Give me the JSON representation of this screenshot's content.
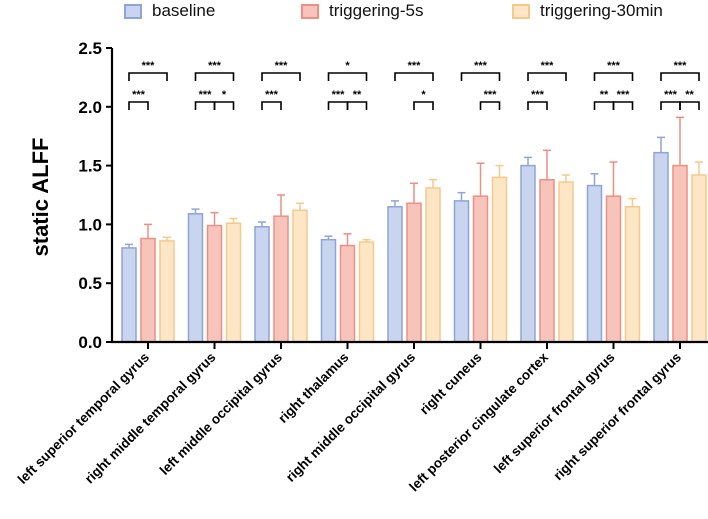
{
  "chart_data": {
    "type": "bar",
    "ylabel": "static ALFF",
    "xlabel": "",
    "ylim": [
      0,
      2.5
    ],
    "yticks": [
      0.0,
      0.5,
      1.0,
      1.5,
      2.0,
      2.5
    ],
    "ytick_labels": [
      "0.0",
      "0.5",
      "1.0",
      "1.5",
      "2.0",
      "2.5"
    ],
    "legend_position": "top",
    "categories": [
      "left superior temporal gyrus",
      "right middle temporal gyrus",
      "left middle occipital gyrus",
      "right thalamus",
      "right middle occipital gyrus",
      "right cuneus",
      "left posterior cingulate cortex",
      "left superior frontal gyrus",
      "right superior frontal gyrus"
    ],
    "series": [
      {
        "name": "baseline",
        "fill": "#c9d4ee",
        "stroke": "#8fa4d8",
        "values": [
          0.8,
          1.09,
          0.98,
          0.87,
          1.15,
          1.2,
          1.5,
          1.33,
          1.61
        ],
        "errors": [
          0.03,
          0.04,
          0.04,
          0.03,
          0.05,
          0.07,
          0.07,
          0.1,
          0.13
        ]
      },
      {
        "name": "triggering-5s",
        "fill": "#f7c4bc",
        "stroke": "#ee8f82",
        "values": [
          0.88,
          0.99,
          1.07,
          0.82,
          1.18,
          1.24,
          1.38,
          1.24,
          1.5
        ],
        "errors": [
          0.12,
          0.11,
          0.18,
          0.1,
          0.17,
          0.28,
          0.25,
          0.29,
          0.41
        ]
      },
      {
        "name": "triggering-30min",
        "fill": "#fde6c6",
        "stroke": "#f6c98a",
        "values": [
          0.86,
          1.01,
          1.12,
          0.85,
          1.31,
          1.4,
          1.36,
          1.15,
          1.42
        ],
        "errors": [
          0.03,
          0.04,
          0.06,
          0.02,
          0.07,
          0.1,
          0.06,
          0.07,
          0.11
        ]
      }
    ],
    "significance": [
      {
        "category": 0,
        "brackets": [
          {
            "pair": [
              0,
              2
            ],
            "label": "***"
          },
          {
            "pair": [
              0,
              1
            ],
            "label": "***"
          }
        ]
      },
      {
        "category": 1,
        "brackets": [
          {
            "pair": [
              0,
              2
            ],
            "label": "***"
          },
          {
            "pair": [
              0,
              1
            ],
            "label": "***"
          },
          {
            "pair": [
              1,
              2
            ],
            "label": "*"
          }
        ]
      },
      {
        "category": 2,
        "brackets": [
          {
            "pair": [
              0,
              2
            ],
            "label": "***"
          },
          {
            "pair": [
              0,
              1
            ],
            "label": "***"
          }
        ]
      },
      {
        "category": 3,
        "brackets": [
          {
            "pair": [
              0,
              2
            ],
            "label": "*"
          },
          {
            "pair": [
              0,
              1
            ],
            "label": "***"
          },
          {
            "pair": [
              1,
              2
            ],
            "label": "**"
          }
        ]
      },
      {
        "category": 4,
        "brackets": [
          {
            "pair": [
              0,
              2
            ],
            "label": "***"
          },
          {
            "pair": [
              1,
              2
            ],
            "label": "*"
          }
        ]
      },
      {
        "category": 5,
        "brackets": [
          {
            "pair": [
              0,
              2
            ],
            "label": "***"
          },
          {
            "pair": [
              1,
              2
            ],
            "label": "***"
          }
        ]
      },
      {
        "category": 6,
        "brackets": [
          {
            "pair": [
              0,
              2
            ],
            "label": "***"
          },
          {
            "pair": [
              0,
              1
            ],
            "label": "***"
          }
        ]
      },
      {
        "category": 7,
        "brackets": [
          {
            "pair": [
              0,
              2
            ],
            "label": "***"
          },
          {
            "pair": [
              0,
              1
            ],
            "label": "**"
          },
          {
            "pair": [
              1,
              2
            ],
            "label": "***"
          }
        ]
      },
      {
        "category": 8,
        "brackets": [
          {
            "pair": [
              0,
              2
            ],
            "label": "***"
          },
          {
            "pair": [
              0,
              1
            ],
            "label": "***"
          },
          {
            "pair": [
              1,
              2
            ],
            "label": "**"
          }
        ]
      }
    ]
  }
}
